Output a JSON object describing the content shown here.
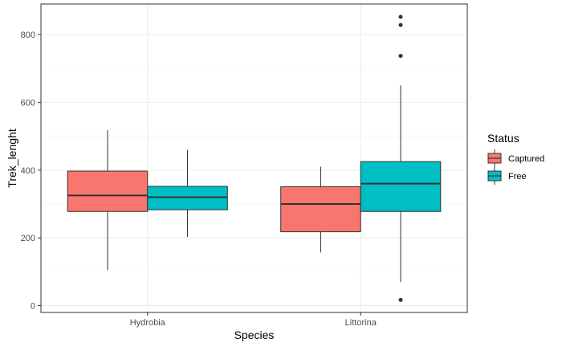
{
  "chart_data": {
    "type": "boxplot",
    "xlabel": "Species",
    "ylabel": "Trek_lenght",
    "categories": [
      "Hydrobia",
      "Littorina"
    ],
    "ylim": [
      -20,
      890
    ],
    "yticks": [
      0,
      200,
      400,
      600,
      800
    ],
    "grid": true,
    "legend": {
      "title": "Status",
      "placement": "right",
      "entries": [
        {
          "name": "Captured",
          "color": "#F8766D"
        },
        {
          "name": "Free",
          "color": "#00BFC4"
        }
      ]
    },
    "series": [
      {
        "name": "Captured",
        "color": "#F8766D",
        "boxes": [
          {
            "category": "Hydrobia",
            "min": 105,
            "q1": 278,
            "median": 325,
            "q3": 397,
            "max": 518,
            "outliers": []
          },
          {
            "category": "Littorina",
            "min": 157,
            "q1": 218,
            "median": 300,
            "q3": 351,
            "max": 410,
            "outliers": []
          }
        ]
      },
      {
        "name": "Free",
        "color": "#00BFC4",
        "boxes": [
          {
            "category": "Hydrobia",
            "min": 203,
            "q1": 283,
            "median": 320,
            "q3": 352,
            "max": 460,
            "outliers": []
          },
          {
            "category": "Littorina",
            "min": 70,
            "q1": 278,
            "median": 360,
            "q3": 425,
            "max": 650,
            "outliers": [
              17,
              737,
              828,
              852
            ]
          }
        ]
      }
    ]
  }
}
